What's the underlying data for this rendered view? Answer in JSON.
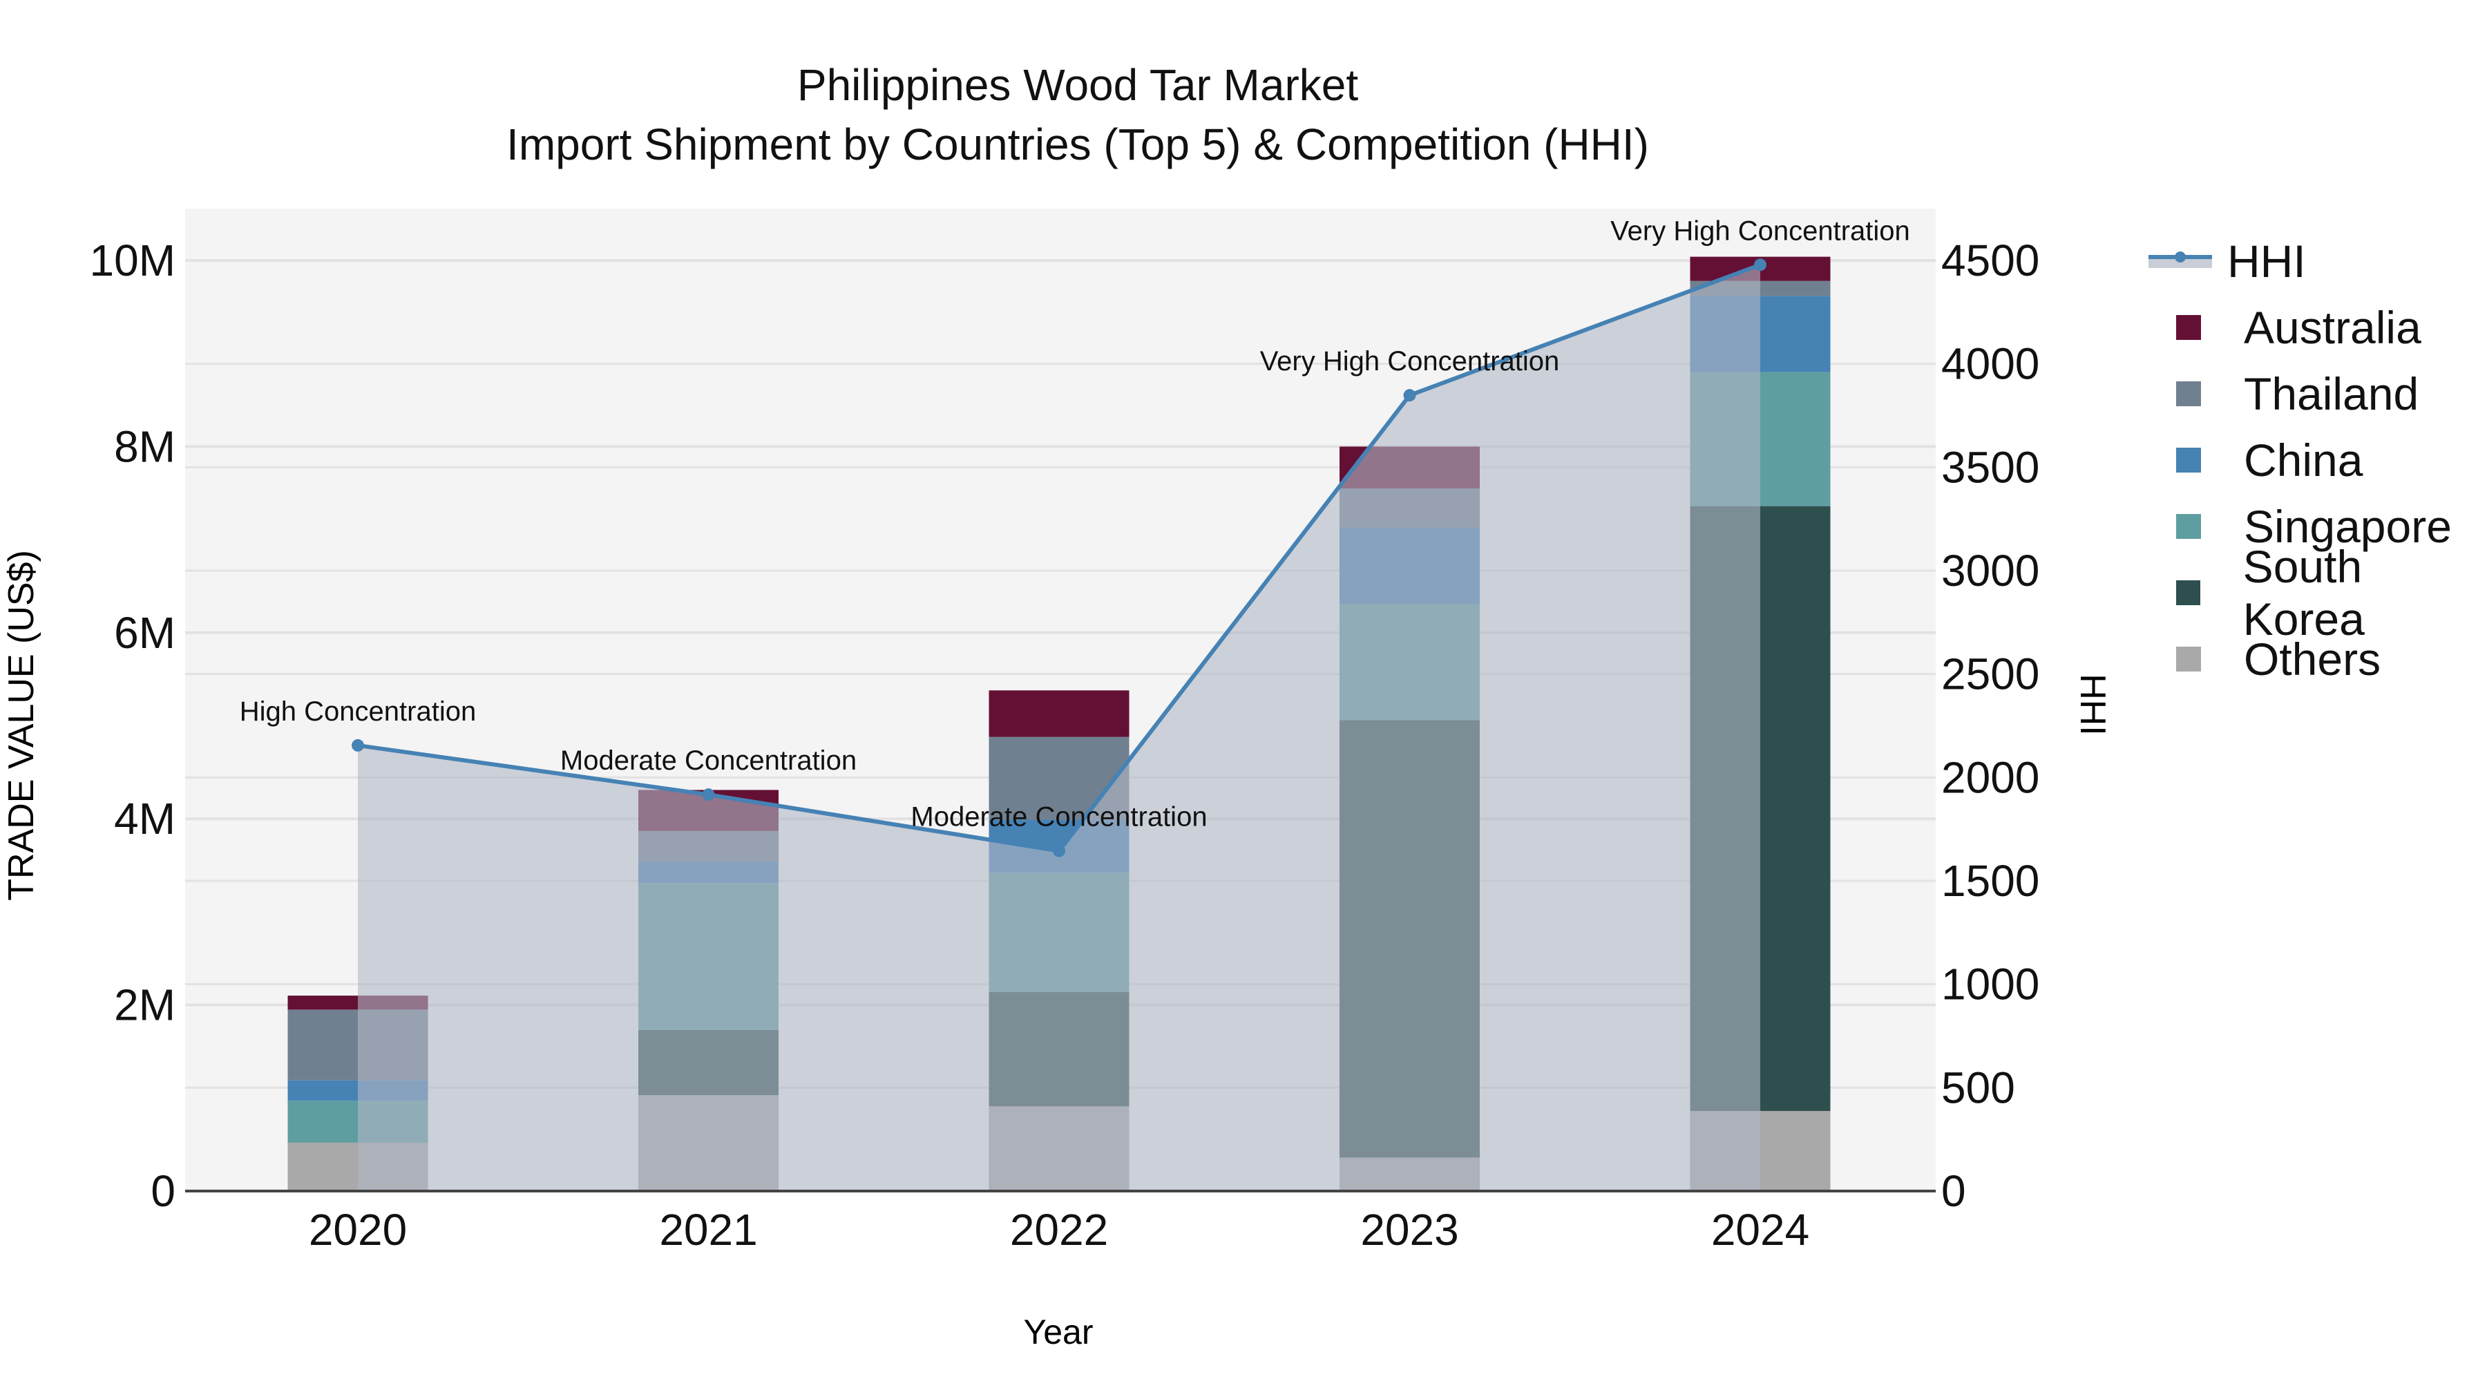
{
  "chart_data": {
    "type": "bar",
    "title": "Philippines Wood Tar Market",
    "subtitle": "Import Shipment by Countries (Top 5) & Competition (HHI)",
    "xlabel": "Year",
    "ylabel": "TRADE VALUE (US$)",
    "y2label": "HHI",
    "categories": [
      "2020",
      "2021",
      "2022",
      "2023",
      "2024"
    ],
    "barmode": "stack",
    "series": [
      {
        "name": "Others",
        "color": "#a9a9a9",
        "values": [
          520000,
          1030000,
          910000,
          360000,
          860000
        ]
      },
      {
        "name": "South Korea",
        "color": "#2f4f4f",
        "values": [
          0,
          700000,
          1230000,
          4700000,
          6500000
        ]
      },
      {
        "name": "Singapore",
        "color": "#5f9ea0",
        "values": [
          450000,
          1580000,
          1280000,
          1250000,
          1440000
        ]
      },
      {
        "name": "China",
        "color": "#4682b4",
        "values": [
          220000,
          230000,
          570000,
          820000,
          820000
        ]
      },
      {
        "name": "Thailand",
        "color": "#708090",
        "values": [
          760000,
          330000,
          890000,
          420000,
          160000
        ]
      },
      {
        "name": "Australia",
        "color": "#641034",
        "values": [
          150000,
          440000,
          500000,
          450000,
          260000
        ]
      }
    ],
    "line_series": {
      "name": "HHI",
      "axis": "y2",
      "color": "#4682b4",
      "fill": "tozeroy",
      "fill_color": "rgba(176,184,198,0.6)",
      "values": [
        2155,
        1917,
        1645,
        3848,
        4479
      ],
      "annotations": [
        "High Concentration",
        "Moderate Concentration",
        "Moderate Concentration",
        "Very High Concentration",
        "Very High Concentration"
      ]
    },
    "ylim": [
      0,
      10600000
    ],
    "y2lim": [
      0,
      4780
    ],
    "yticks": [
      0,
      2000000,
      4000000,
      6000000,
      8000000,
      10000000
    ],
    "ytick_labels": [
      "0",
      "2M",
      "4M",
      "6M",
      "8M",
      "10M"
    ],
    "y2ticks": [
      0,
      500,
      1000,
      1500,
      2000,
      2500,
      3000,
      3500,
      4000,
      4500
    ],
    "y2tick_labels": [
      "0",
      "500",
      "1000",
      "1500",
      "2000",
      "2500",
      "3000",
      "3500",
      "4000",
      "4500"
    ],
    "grid": true,
    "legend_position": "right"
  },
  "legend": {
    "items": [
      {
        "label": "HHI",
        "kind": "line",
        "color": "#4682b4"
      },
      {
        "label": "Australia",
        "kind": "box",
        "color": "#641034"
      },
      {
        "label": "Thailand",
        "kind": "box",
        "color": "#708090"
      },
      {
        "label": "China",
        "kind": "box",
        "color": "#4682b4"
      },
      {
        "label": "Singapore",
        "kind": "box",
        "color": "#5f9ea0"
      },
      {
        "label": "South Korea",
        "kind": "box",
        "color": "#2f4f4f"
      },
      {
        "label": "Others",
        "kind": "box",
        "color": "#a9a9a9"
      }
    ]
  },
  "colors": {
    "plot_bg": "#f4f4f4",
    "grid": "#e2e2e2",
    "axis_line": "#444444",
    "text": "#111111"
  }
}
